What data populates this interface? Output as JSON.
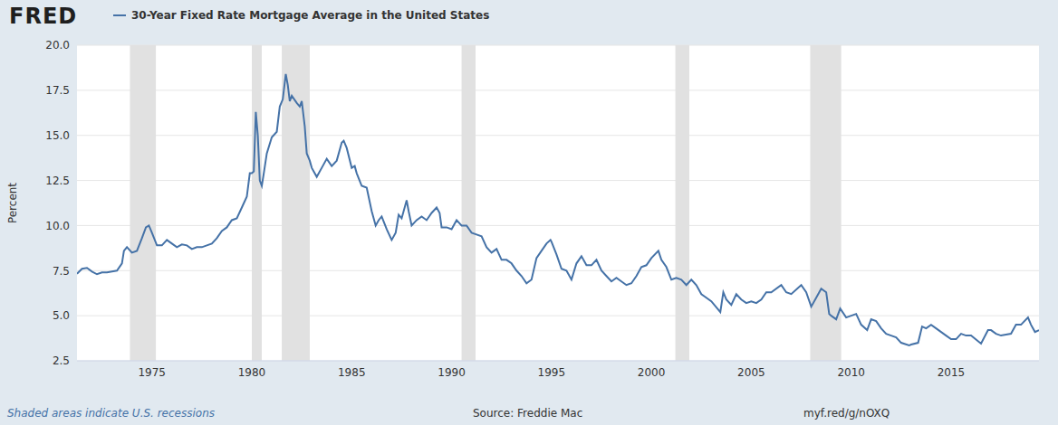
{
  "chart_data": {
    "type": "line",
    "logo": "FRED",
    "ylabel": "Percent",
    "legend": "top left",
    "grid": true,
    "note": "Shaded areas indicate U.S. recessions",
    "source": "Source: Freddie Mac",
    "url": "myf.red/g/nOXQ",
    "xlim": [
      1971.25,
      2019.4
    ],
    "xticks": [
      1975,
      1980,
      1985,
      1990,
      1995,
      2000,
      2005,
      2010,
      2015
    ],
    "ylim": [
      2.5,
      20
    ],
    "yticks": [
      2.5,
      {
        "value": 5,
        "label": "5.0"
      },
      7.5,
      {
        "value": 10,
        "label": "10.0"
      },
      12.5,
      {
        "value": 15,
        "label": "15.0"
      },
      17.5,
      {
        "value": 20,
        "label": "20.0"
      }
    ],
    "recessions": [
      [
        1973.9,
        1975.2
      ],
      [
        1980.0,
        1980.5
      ],
      [
        1981.5,
        1982.9
      ],
      [
        1990.5,
        1991.2
      ],
      [
        2001.2,
        2001.9
      ],
      [
        2007.95,
        2009.5
      ]
    ],
    "x": [
      1971.25,
      1971.5,
      1971.75,
      1972,
      1972.25,
      1972.5,
      1972.75,
      1973,
      1973.25,
      1973.5,
      1973.6,
      1973.75,
      1974,
      1974.25,
      1974.5,
      1974.7,
      1974.85,
      1975,
      1975.25,
      1975.5,
      1975.75,
      1976,
      1976.25,
      1976.5,
      1976.75,
      1977,
      1977.25,
      1977.5,
      1977.75,
      1978,
      1978.25,
      1978.5,
      1978.75,
      1979,
      1979.25,
      1979.5,
      1979.75,
      1979.9,
      1980,
      1980.1,
      1980.2,
      1980.3,
      1980.4,
      1980.5,
      1980.6,
      1980.75,
      1981,
      1981.25,
      1981.4,
      1981.55,
      1981.7,
      1981.8,
      1981.9,
      1982,
      1982.25,
      1982.4,
      1982.5,
      1982.65,
      1982.75,
      1982.9,
      1983,
      1983.25,
      1983.5,
      1983.75,
      1984,
      1984.25,
      1984.5,
      1984.6,
      1984.75,
      1985,
      1985.15,
      1985.25,
      1985.5,
      1985.75,
      1986,
      1986.2,
      1986.35,
      1986.5,
      1986.75,
      1987,
      1987.2,
      1987.35,
      1987.5,
      1987.75,
      1987.85,
      1988,
      1988.25,
      1988.5,
      1988.75,
      1989,
      1989.25,
      1989.4,
      1989.5,
      1989.75,
      1990,
      1990.25,
      1990.5,
      1990.75,
      1991,
      1991.25,
      1991.5,
      1991.75,
      1992,
      1992.25,
      1992.5,
      1992.75,
      1993,
      1993.25,
      1993.5,
      1993.75,
      1994,
      1994.25,
      1994.5,
      1994.75,
      1994.95,
      1995,
      1995.25,
      1995.5,
      1995.75,
      1996,
      1996.25,
      1996.5,
      1996.75,
      1997,
      1997.25,
      1997.5,
      1997.75,
      1998,
      1998.25,
      1998.5,
      1998.75,
      1999,
      1999.25,
      1999.5,
      1999.75,
      2000,
      2000.35,
      2000.5,
      2000.75,
      2001,
      2001.25,
      2001.5,
      2001.75,
      2002,
      2002.25,
      2002.5,
      2002.75,
      2003,
      2003.45,
      2003.6,
      2003.75,
      2004,
      2004.25,
      2004.5,
      2004.75,
      2005,
      2005.25,
      2005.5,
      2005.75,
      2006,
      2006.5,
      2006.75,
      2007,
      2007.5,
      2007.75,
      2008,
      2008.25,
      2008.5,
      2008.75,
      2008.9,
      2009,
      2009.25,
      2009.45,
      2009.75,
      2010,
      2010.25,
      2010.5,
      2010.8,
      2011,
      2011.25,
      2011.5,
      2011.75,
      2012,
      2012.25,
      2012.5,
      2012.9,
      2013,
      2013.35,
      2013.55,
      2013.75,
      2014,
      2014.25,
      2014.5,
      2014.75,
      2015,
      2015.25,
      2015.5,
      2015.75,
      2016,
      2016.5,
      2016.85,
      2017,
      2017.25,
      2017.5,
      2017.75,
      2018,
      2018.25,
      2018.5,
      2018.85,
      2019,
      2019.2,
      2019.4
    ],
    "series": [
      {
        "name": "30-Year Fixed Rate Mortgage Average in the United States",
        "color": "#4572a7",
        "values": [
          7.33,
          7.6,
          7.65,
          7.45,
          7.3,
          7.4,
          7.4,
          7.45,
          7.5,
          7.9,
          8.6,
          8.8,
          8.5,
          8.6,
          9.3,
          9.9,
          10.0,
          9.6,
          8.9,
          8.9,
          9.2,
          9.0,
          8.8,
          8.95,
          8.9,
          8.7,
          8.8,
          8.8,
          8.9,
          9.0,
          9.3,
          9.7,
          9.9,
          10.3,
          10.4,
          11.0,
          11.6,
          12.9,
          12.9,
          13.0,
          16.3,
          15.0,
          12.5,
          12.2,
          12.9,
          14.0,
          14.9,
          15.2,
          16.6,
          17.0,
          18.4,
          17.8,
          16.9,
          17.2,
          16.8,
          16.6,
          16.9,
          15.5,
          14.0,
          13.6,
          13.2,
          12.7,
          13.2,
          13.7,
          13.3,
          13.6,
          14.6,
          14.7,
          14.3,
          13.2,
          13.3,
          12.9,
          12.2,
          12.1,
          10.8,
          10.0,
          10.3,
          10.5,
          9.8,
          9.2,
          9.6,
          10.6,
          10.4,
          11.4,
          10.8,
          10.0,
          10.3,
          10.5,
          10.3,
          10.7,
          11.0,
          10.7,
          9.9,
          9.9,
          9.8,
          10.3,
          10.0,
          10.0,
          9.6,
          9.5,
          9.4,
          8.8,
          8.5,
          8.7,
          8.1,
          8.1,
          7.9,
          7.5,
          7.2,
          6.8,
          7.0,
          8.2,
          8.6,
          9.0,
          9.2,
          9.1,
          8.4,
          7.6,
          7.5,
          7.0,
          7.9,
          8.3,
          7.8,
          7.8,
          8.1,
          7.5,
          7.2,
          6.9,
          7.1,
          6.9,
          6.7,
          6.8,
          7.2,
          7.7,
          7.8,
          8.2,
          8.6,
          8.1,
          7.7,
          7.0,
          7.1,
          7.0,
          6.7,
          7.0,
          6.7,
          6.2,
          6.0,
          5.8,
          5.2,
          6.3,
          5.9,
          5.6,
          6.2,
          5.9,
          5.7,
          5.8,
          5.7,
          5.9,
          6.3,
          6.3,
          6.7,
          6.3,
          6.2,
          6.7,
          6.3,
          5.5,
          6.0,
          6.5,
          6.3,
          5.1,
          5.0,
          4.8,
          5.4,
          4.9,
          5.0,
          5.1,
          4.5,
          4.2,
          4.8,
          4.7,
          4.3,
          4.0,
          3.9,
          3.8,
          3.5,
          3.35,
          3.4,
          3.5,
          4.4,
          4.3,
          4.5,
          4.3,
          4.1,
          3.9,
          3.7,
          3.7,
          4.0,
          3.9,
          3.9,
          3.45,
          4.2,
          4.2,
          4.0,
          3.9,
          3.95,
          4.0,
          4.5,
          4.5,
          4.9,
          4.5,
          4.1,
          4.2
        ]
      }
    ]
  }
}
